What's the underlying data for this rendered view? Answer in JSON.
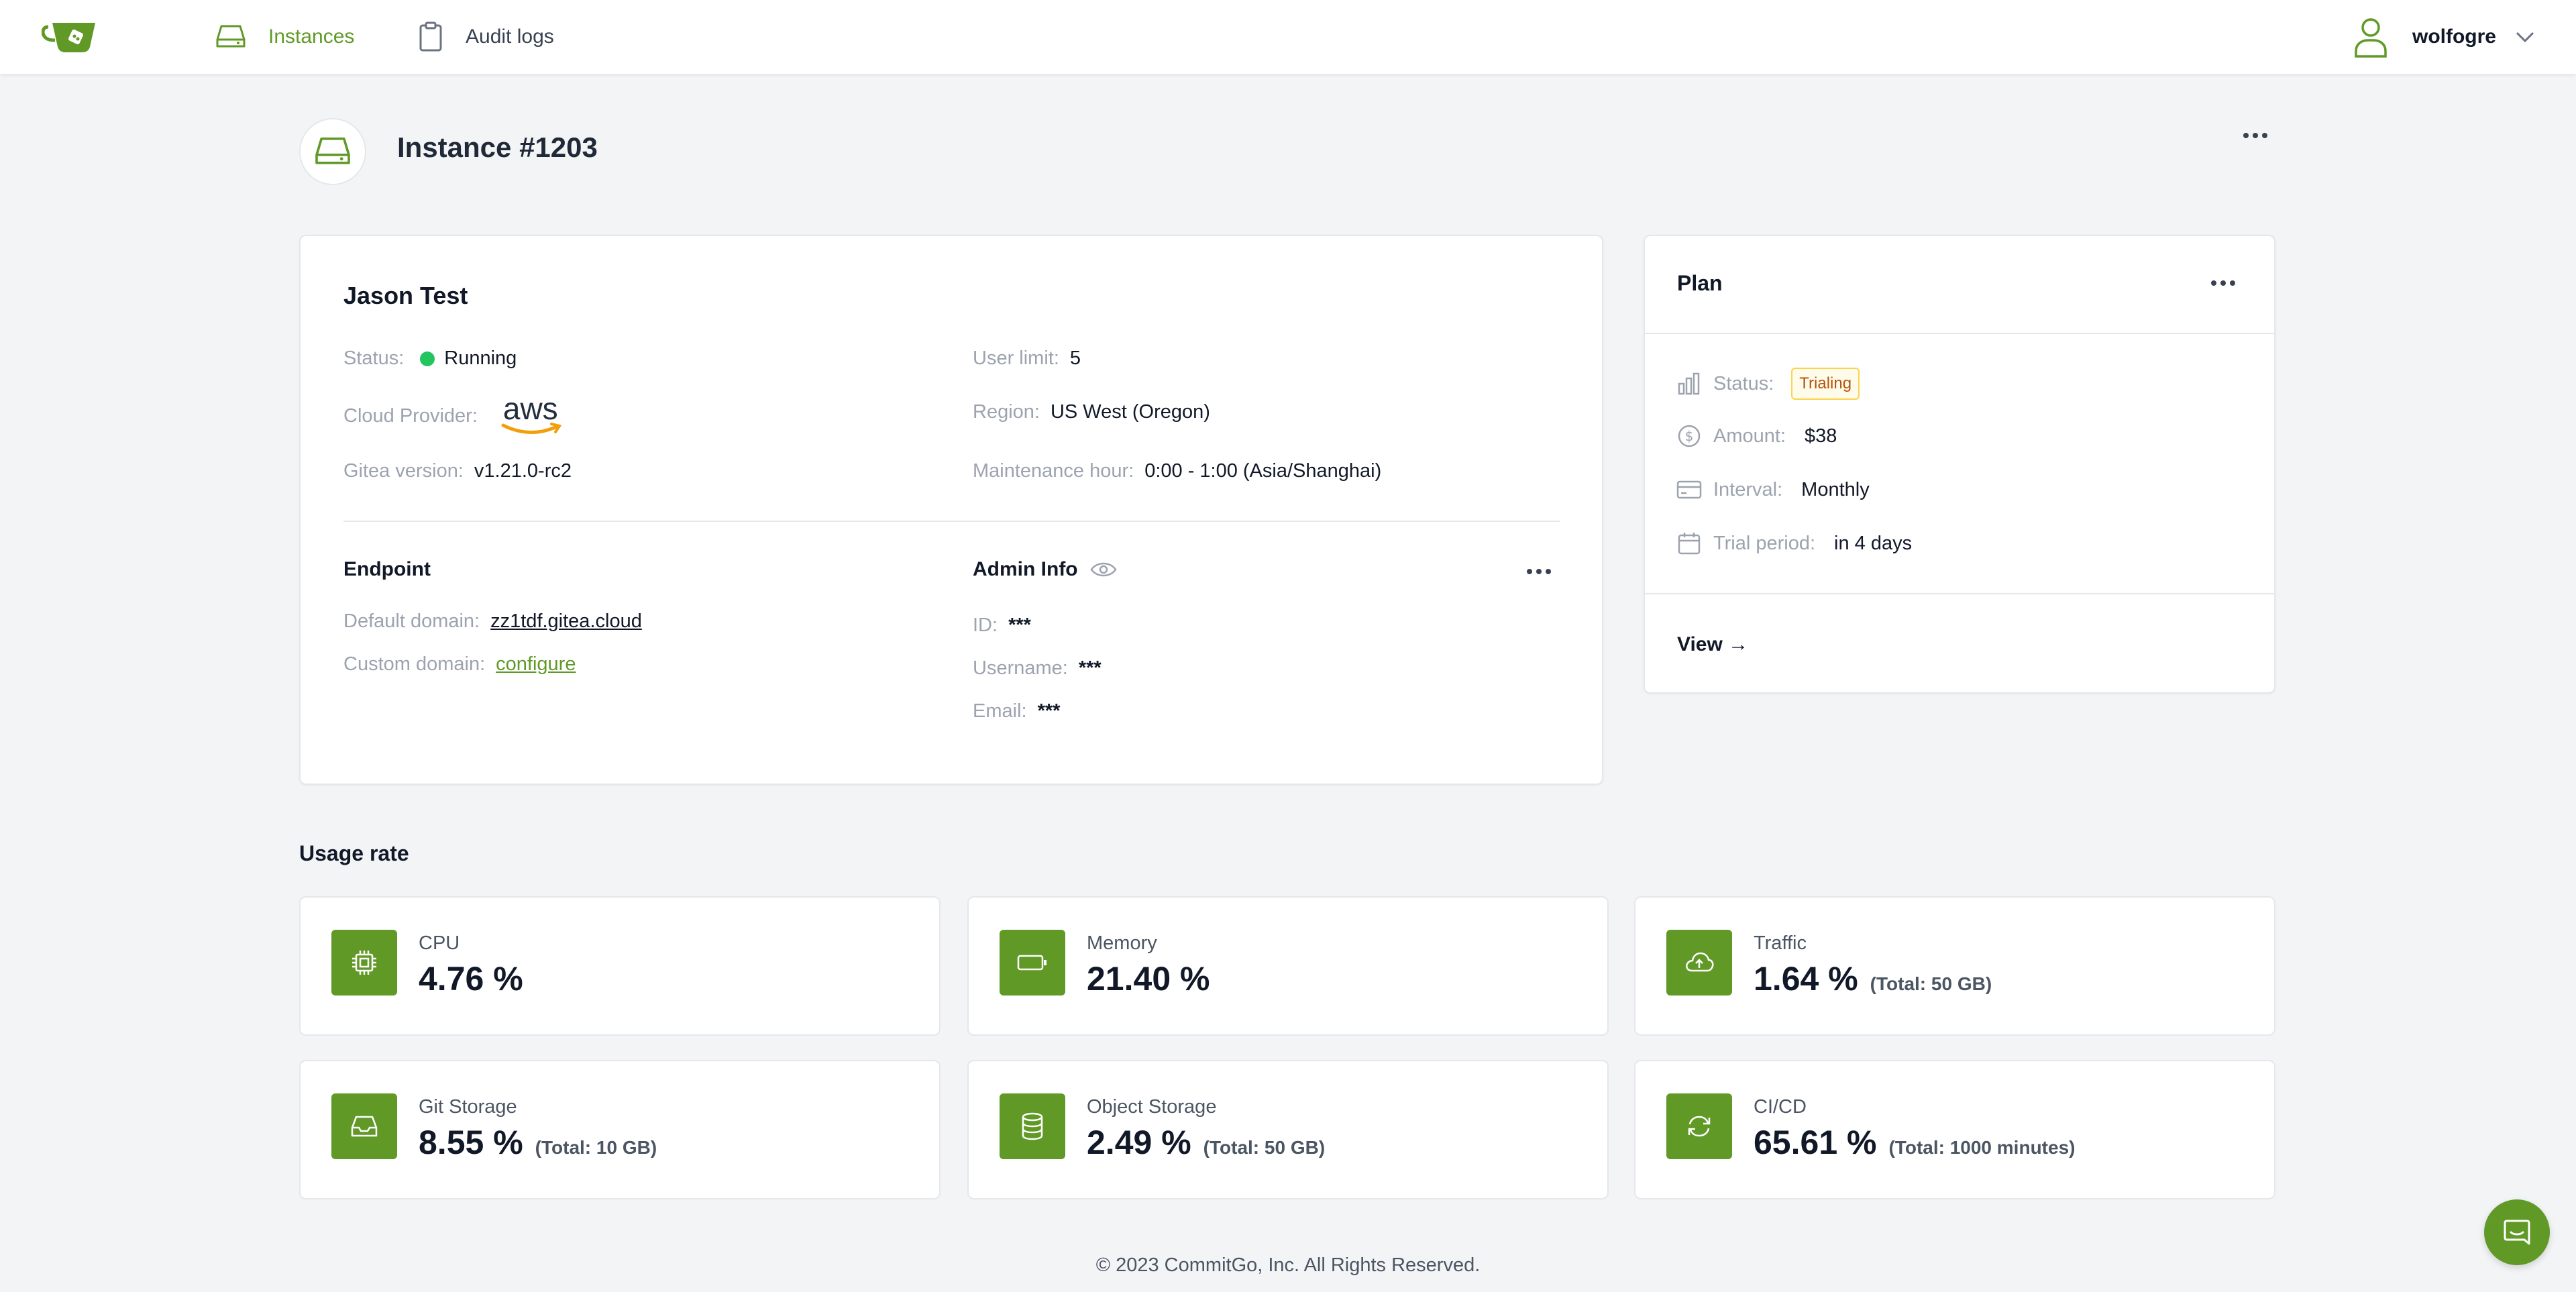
{
  "header": {
    "nav": [
      {
        "label": "Instances",
        "icon": "server-icon",
        "active": true
      },
      {
        "label": "Audit logs",
        "icon": "clipboard-icon",
        "active": false
      }
    ],
    "user": {
      "name": "wolfogre"
    }
  },
  "instance": {
    "title": "Instance #1203"
  },
  "details": {
    "name": "Jason Test",
    "status": {
      "label": "Status:",
      "value": "Running"
    },
    "cloud_provider": {
      "label": "Cloud Provider:",
      "value": "aws"
    },
    "gitea_version": {
      "label": "Gitea version:",
      "value": "v1.21.0-rc2"
    },
    "user_limit": {
      "label": "User limit:",
      "value": "5"
    },
    "region": {
      "label": "Region:",
      "value": "US West (Oregon)"
    },
    "maintenance_hour": {
      "label": "Maintenance hour:",
      "value": "0:00 - 1:00 (Asia/Shanghai)"
    },
    "endpoint": {
      "title": "Endpoint",
      "default_domain": {
        "label": "Default domain:",
        "value": "zz1tdf.gitea.cloud"
      },
      "custom_domain": {
        "label": "Custom domain:",
        "value": "configure"
      }
    },
    "admin": {
      "title": "Admin Info",
      "id": {
        "label": "ID:",
        "value": "***"
      },
      "username": {
        "label": "Username:",
        "value": "***"
      },
      "email": {
        "label": "Email:",
        "value": "***"
      }
    }
  },
  "plan": {
    "title": "Plan",
    "status": {
      "label": "Status:",
      "value": "Trialing"
    },
    "amount": {
      "label": "Amount:",
      "value": "$38"
    },
    "interval": {
      "label": "Interval:",
      "value": "Monthly"
    },
    "trial_period": {
      "label": "Trial period:",
      "value": "in 4 days"
    },
    "view_link": "View →"
  },
  "usage": {
    "title": "Usage rate",
    "items": [
      {
        "name": "CPU",
        "value": "4.76 %",
        "total": ""
      },
      {
        "name": "Memory",
        "value": "21.40 %",
        "total": ""
      },
      {
        "name": "Traffic",
        "value": "1.64 %",
        "total": "(Total: 50 GB)"
      },
      {
        "name": "Git Storage",
        "value": "8.55 %",
        "total": "(Total: 10 GB)"
      },
      {
        "name": "Object Storage",
        "value": "2.49 %",
        "total": "(Total: 50 GB)"
      },
      {
        "name": "CI/CD",
        "value": "65.61 %",
        "total": "(Total: 1000 minutes)"
      }
    ]
  },
  "footer": {
    "copyright": "© 2023 CommitGo, Inc. All Rights Reserved."
  },
  "colors": {
    "accent": "#609926",
    "running": "#22c55e",
    "trialing": "#b45309"
  }
}
